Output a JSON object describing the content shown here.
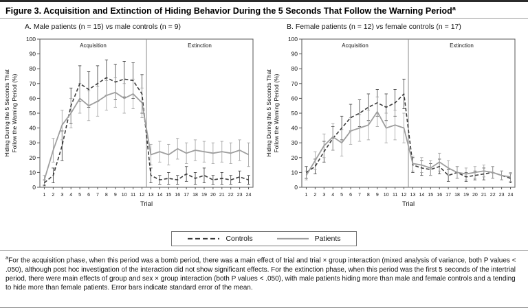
{
  "figure": {
    "title": "Figure 3. Acquisition and Extinction of Hiding Behavior During the 5 Seconds That Follow the Warning Period",
    "title_sup": "a",
    "footnote_sup": "a",
    "footnote": "For the acquisition phase, when this period was a bomb period, there was a main effect of trial and trial × group interaction (mixed analysis of variance, both P values < .050), although post hoc investigation of the interaction did not show significant effects. For the extinction phase, when this period was the first 5 seconds of the intertrial period, there were main effects of group and sex × group interaction (both P values < .050), with male patients hiding more than male and female controls and a tending to hide more than female patients. Error bars indicate standard error of the mean."
  },
  "panels": [
    {
      "label": "A. Male patients (n = 15) vs male controls (n = 9)"
    },
    {
      "label": "B. Female patients (n = 12) vs female controls (n = 17)"
    }
  ],
  "legend": {
    "controls_label": "Controls",
    "patients_label": "Patients"
  },
  "colors": {
    "controls": "#3a3a3a",
    "patients": "#9e9e9e",
    "axis": "#555555",
    "divider": "#8a8a8a"
  },
  "chart_data": [
    {
      "type": "line",
      "title": "A. Male patients (n = 15) vs male controls (n = 9)",
      "xlabel": "Trial",
      "ylabel": "Hiding During the 5 Seconds That Follow the Warning Period (%)",
      "ylabel_lines": [
        "Hiding During the 5 Seconds That",
        "Follow the Warning Period (%)"
      ],
      "ylim": [
        0,
        100
      ],
      "ytick_step": 10,
      "x": [
        1,
        2,
        3,
        4,
        5,
        6,
        7,
        8,
        9,
        10,
        11,
        12,
        13,
        14,
        15,
        16,
        17,
        18,
        19,
        20,
        21,
        22,
        23,
        24
      ],
      "annotations": [
        "Acquisition",
        "Extinction"
      ],
      "phase_divider_x": 12.5,
      "series": [
        {
          "name": "Controls",
          "style": "dashed",
          "color": "#3a3a3a",
          "values": [
            3,
            8,
            28,
            55,
            70,
            66,
            70,
            74,
            71,
            73,
            72,
            63,
            8,
            5,
            6,
            5,
            9,
            6,
            8,
            5,
            6,
            5,
            7,
            5
          ],
          "errors": [
            2,
            5,
            10,
            12,
            12,
            12,
            12,
            12,
            12,
            12,
            12,
            13,
            5,
            3,
            4,
            3,
            5,
            4,
            5,
            3,
            4,
            3,
            4,
            3
          ]
        },
        {
          "name": "Patients",
          "style": "solid",
          "color": "#9e9e9e",
          "values": [
            5,
            25,
            42,
            50,
            60,
            55,
            58,
            62,
            64,
            60,
            63,
            57,
            22,
            24,
            22,
            26,
            23,
            25,
            24,
            23,
            24,
            23,
            25,
            22
          ],
          "errors": [
            3,
            8,
            10,
            10,
            10,
            10,
            10,
            10,
            10,
            10,
            10,
            10,
            7,
            7,
            7,
            7,
            7,
            7,
            7,
            7,
            7,
            7,
            7,
            8
          ]
        }
      ]
    },
    {
      "type": "line",
      "title": "B. Female patients (n = 12) vs female controls (n = 17)",
      "xlabel": "Trial",
      "ylabel": "Hiding During the 5 Seconds That Follow the Warning Period (%)",
      "ylabel_lines": [
        "Hiding During the 5 Seconds That",
        "Follow the Warning Period (%)"
      ],
      "ylim": [
        0,
        100
      ],
      "ytick_step": 10,
      "x": [
        1,
        2,
        3,
        4,
        5,
        6,
        7,
        8,
        9,
        10,
        11,
        12,
        13,
        14,
        15,
        16,
        17,
        18,
        19,
        20,
        21,
        22,
        23,
        24
      ],
      "annotations": [
        "Acquisition",
        "Extinction"
      ],
      "phase_divider_x": 12.5,
      "series": [
        {
          "name": "Controls",
          "style": "dashed",
          "color": "#3a3a3a",
          "values": [
            10,
            14,
            24,
            33,
            40,
            47,
            50,
            54,
            57,
            54,
            57,
            63,
            15,
            13,
            12,
            14,
            8,
            10,
            7,
            8,
            9,
            10,
            8,
            6
          ],
          "errors": [
            4,
            5,
            7,
            8,
            8,
            9,
            9,
            9,
            9,
            9,
            9,
            10,
            5,
            5,
            4,
            5,
            4,
            4,
            3,
            3,
            4,
            4,
            3,
            3
          ]
        },
        {
          "name": "Patients",
          "style": "solid",
          "color": "#9e9e9e",
          "values": [
            8,
            18,
            28,
            34,
            30,
            38,
            40,
            42,
            51,
            40,
            42,
            40,
            16,
            15,
            13,
            17,
            13,
            10,
            9,
            10,
            11,
            10,
            8,
            7
          ],
          "errors": [
            3,
            6,
            8,
            9,
            9,
            9,
            9,
            10,
            10,
            10,
            10,
            10,
            5,
            5,
            5,
            6,
            5,
            4,
            4,
            4,
            4,
            4,
            3,
            3
          ]
        }
      ]
    }
  ]
}
